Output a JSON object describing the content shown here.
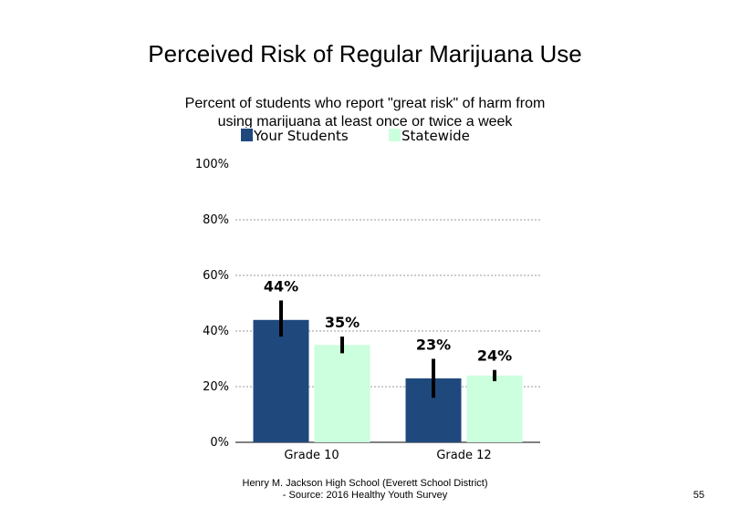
{
  "chart_data": {
    "type": "bar",
    "title": "Perceived Risk of Regular Marijuana Use",
    "subtitle": "Percent of students who report \"great risk\" of harm from using marijuana at least once or twice a week",
    "categories": [
      "Grade 10",
      "Grade 12"
    ],
    "series": [
      {
        "name": "Your Students",
        "color": "#1F497D",
        "values": [
          44,
          23
        ],
        "error_low": [
          38,
          16
        ],
        "error_high": [
          51,
          30
        ],
        "labels": [
          "44%",
          "23%"
        ]
      },
      {
        "name": "Statewide",
        "color": "#CCFFDD",
        "values": [
          35,
          24
        ],
        "error_low": [
          32,
          22
        ],
        "error_high": [
          38,
          26
        ],
        "labels": [
          "35%",
          "24%"
        ]
      }
    ],
    "ylim": [
      0,
      100
    ],
    "yticks": [
      0,
      20,
      40,
      60,
      80,
      100
    ],
    "ytick_labels": [
      "0%",
      "20%",
      "40%",
      "60%",
      "80%",
      "100%"
    ],
    "grid": true,
    "legend_position": "top"
  },
  "footer": {
    "line1": "Henry M. Jackson High School (Everett School District)",
    "line2": "- Source: 2016 Healthy Youth Survey"
  },
  "page_number": "55"
}
